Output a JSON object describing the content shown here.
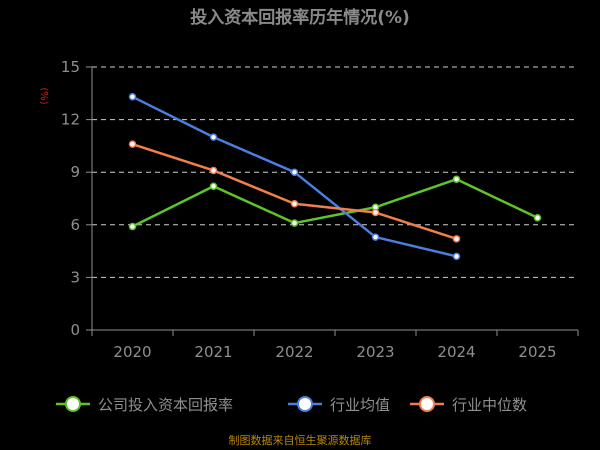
{
  "chart_data": {
    "type": "line",
    "title": "投入资本回报率历年情况(%)",
    "ylabel": "(%)",
    "xlabel": "",
    "categories": [
      "2020",
      "2021",
      "2022",
      "2023",
      "2024",
      "2025"
    ],
    "ylim": [
      0,
      15
    ],
    "yticks": [
      0,
      3,
      6,
      9,
      12,
      15
    ],
    "grid": true,
    "legend_position": "bottom",
    "series": [
      {
        "name": "公司投入资本回报率",
        "color": "#5ec429",
        "values": [
          5.9,
          8.2,
          6.1,
          7.0,
          8.6,
          6.4
        ]
      },
      {
        "name": "行业均值",
        "color": "#4a7fe0",
        "values": [
          13.3,
          11.0,
          9.0,
          5.3,
          4.2,
          null
        ]
      },
      {
        "name": "行业中位数",
        "color": "#f07f4c",
        "values": [
          10.6,
          9.1,
          7.2,
          6.7,
          5.2,
          null
        ]
      }
    ]
  },
  "footer": {
    "source": "制图数据来自恒生聚源数据库"
  }
}
